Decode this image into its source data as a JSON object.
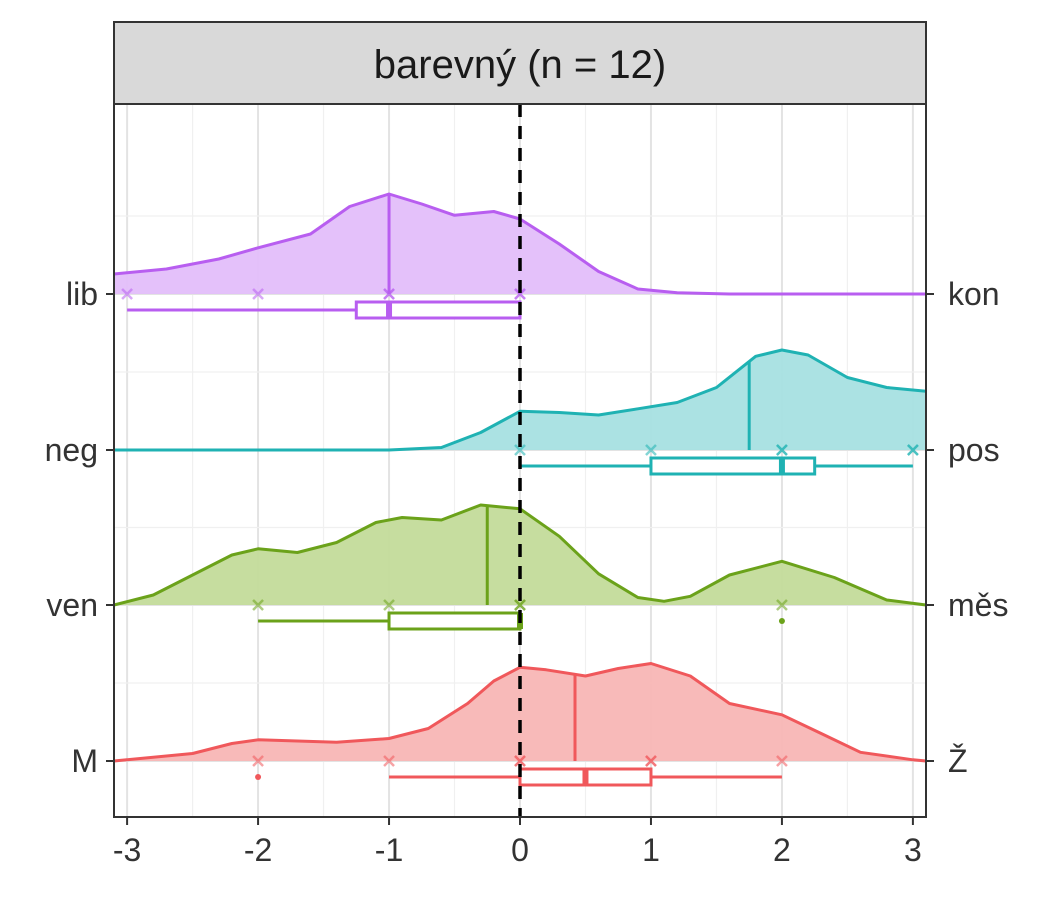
{
  "chart_data": {
    "type": "ridgeline",
    "facet_title": "barevný (n = 12)",
    "x_ticks": [
      -3,
      -2,
      -1,
      0,
      1,
      2,
      3
    ],
    "xlim": [
      -3.1,
      3.1
    ],
    "reference_line_x": 0,
    "grid": true,
    "legend": "none",
    "series": [
      {
        "left_label": "M",
        "right_label": "Ž",
        "color": "#F0585B",
        "fill": "#F8B6B5",
        "mean": 0.42,
        "median": 0.5,
        "q1": 0,
        "q3": 1,
        "whisker_low": -1,
        "whisker_high": 2,
        "outliers": [
          -2
        ],
        "responses": [
          -2,
          -1,
          0,
          0,
          1,
          1,
          2
        ],
        "density_x": [
          -3.1,
          -2.5,
          -2.2,
          -2,
          -1.7,
          -1.4,
          -1.0,
          -0.7,
          -0.4,
          -0.2,
          0,
          0.2,
          0.5,
          0.75,
          1.0,
          1.3,
          1.6,
          2.0,
          2.3,
          2.6,
          3.0,
          3.1
        ],
        "density_y": [
          0.0,
          0.06,
          0.14,
          0.17,
          0.16,
          0.15,
          0.18,
          0.26,
          0.46,
          0.64,
          0.75,
          0.73,
          0.68,
          0.74,
          0.78,
          0.68,
          0.46,
          0.37,
          0.22,
          0.07,
          0.01,
          0.0
        ]
      },
      {
        "left_label": "ven",
        "right_label": "měs",
        "color": "#6BA21A",
        "fill": "#C3DB9A",
        "mean": -0.25,
        "median": 0,
        "q1": -1,
        "q3": 0,
        "whisker_low": -2,
        "whisker_high": 0,
        "outliers": [
          2
        ],
        "responses": [
          -2,
          -1,
          0,
          0,
          2
        ],
        "density_x": [
          -3.1,
          -2.8,
          -2.5,
          -2.2,
          -2.0,
          -1.7,
          -1.4,
          -1.1,
          -0.9,
          -0.6,
          -0.3,
          0,
          0.3,
          0.6,
          0.9,
          1.1,
          1.3,
          1.6,
          2.0,
          2.4,
          2.8,
          3.1
        ],
        "density_y": [
          0.0,
          0.08,
          0.24,
          0.4,
          0.45,
          0.42,
          0.5,
          0.66,
          0.7,
          0.68,
          0.8,
          0.77,
          0.55,
          0.25,
          0.06,
          0.03,
          0.07,
          0.24,
          0.35,
          0.22,
          0.04,
          0.0
        ]
      },
      {
        "left_label": "neg",
        "right_label": "pos",
        "color": "#1FB2B3",
        "fill": "#A7E0E1",
        "mean": 1.75,
        "median": 2,
        "q1": 1,
        "q3": 2.25,
        "whisker_low": 0,
        "whisker_high": 3,
        "outliers": [],
        "responses": [
          0,
          1,
          2,
          2,
          3,
          3
        ],
        "density_x": [
          -3.1,
          -1.0,
          -0.6,
          -0.3,
          0,
          0.3,
          0.6,
          0.9,
          1.2,
          1.5,
          1.8,
          2.0,
          2.2,
          2.5,
          2.8,
          3.1
        ],
        "density_y": [
          0.0,
          0.0,
          0.02,
          0.14,
          0.31,
          0.3,
          0.28,
          0.33,
          0.38,
          0.5,
          0.75,
          0.8,
          0.76,
          0.58,
          0.5,
          0.47
        ]
      },
      {
        "left_label": "lib",
        "right_label": "kon",
        "color": "#B85EF0",
        "fill": "#E3BEFA",
        "mean": -1,
        "median": -1,
        "q1": -1.25,
        "q3": 0,
        "whisker_low": -3,
        "whisker_high": 0,
        "outliers": [],
        "responses": [
          -3,
          -2,
          -1,
          -1,
          0,
          0
        ],
        "density_x": [
          -3.1,
          -2.7,
          -2.3,
          -2.0,
          -1.6,
          -1.3,
          -1.0,
          -0.75,
          -0.5,
          -0.2,
          0,
          0.3,
          0.6,
          0.9,
          1.2,
          1.6,
          2.0,
          3.1
        ],
        "density_y": [
          0.16,
          0.2,
          0.28,
          0.37,
          0.48,
          0.7,
          0.8,
          0.72,
          0.63,
          0.66,
          0.6,
          0.4,
          0.18,
          0.04,
          0.01,
          0.0,
          0.0,
          0.0
        ]
      }
    ]
  }
}
